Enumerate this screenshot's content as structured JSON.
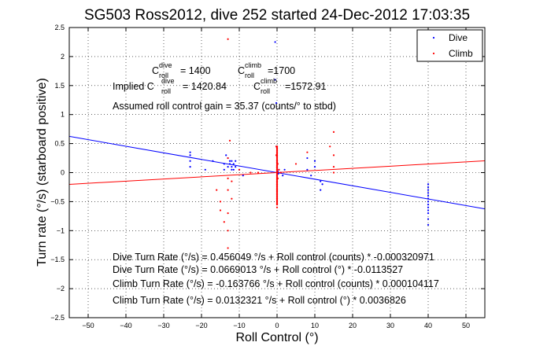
{
  "chart_data": {
    "type": "scatter",
    "title": "SG503 Ross2012, dive 252 started 24-Dec-2012 17:03:35",
    "xlabel": "Roll Control (°)",
    "ylabel": "Turn rate (°/s) (starboard positive)",
    "xlim": [
      -55,
      55
    ],
    "ylim": [
      -2.5,
      2.5
    ],
    "xticks": [
      -50,
      -40,
      -30,
      -20,
      -10,
      0,
      10,
      20,
      30,
      40,
      50
    ],
    "yticks": [
      -2.5,
      -2,
      -1.5,
      -1,
      -0.5,
      0,
      0.5,
      1,
      1.5,
      2,
      2.5
    ],
    "grid": true,
    "legend": {
      "placement": "top-right",
      "entries": [
        "Dive",
        "Climb"
      ]
    },
    "colors": {
      "dive": "#0000ff",
      "climb": "#ff0000",
      "axes": "#000000"
    },
    "series": [
      {
        "name": "Dive",
        "x": [
          -23,
          -23,
          -23,
          -23,
          -19,
          -17,
          -14,
          -14,
          -13.5,
          -13,
          -13,
          -12.5,
          -12.5,
          -12,
          -12,
          -12,
          -11.5,
          -11.5,
          -11,
          -11,
          -10,
          -9,
          -0.5,
          -0.5,
          -0.2,
          -0.2,
          0,
          0,
          0,
          0,
          0,
          0.2,
          0.3,
          0.5,
          1,
          1.5,
          2,
          8,
          8,
          9,
          10,
          10,
          11.5,
          11.5,
          12,
          40,
          40,
          40,
          40,
          40,
          40,
          40,
          40,
          40,
          40,
          40,
          40,
          40
        ],
        "y": [
          0.35,
          0.3,
          0.2,
          0.1,
          0.05,
          0.2,
          0.15,
          0.05,
          0.3,
          0.1,
          0.25,
          0.2,
          0.15,
          0.2,
          0.05,
          0.1,
          0.15,
          0.05,
          0.1,
          0.2,
          0.05,
          -0.05,
          2.25,
          1.6,
          1.2,
          0.45,
          0.3,
          0.2,
          0.1,
          0.05,
          -0.05,
          0.02,
          -0.02,
          0.05,
          0.0,
          -0.05,
          0.05,
          0.25,
          0.05,
          -0.05,
          0.2,
          0.1,
          -0.15,
          -0.3,
          -0.2,
          -0.2,
          -0.3,
          -0.35,
          -0.4,
          -0.45,
          -0.5,
          -0.55,
          -0.6,
          -0.65,
          -0.7,
          -0.8,
          -0.9,
          -0.25
        ]
      },
      {
        "name": "Climb",
        "x": [
          -16,
          -15,
          -15,
          -14,
          -13,
          -13,
          -13,
          -13,
          -13,
          -13,
          -12,
          -12,
          -10,
          -7,
          -5,
          -0.2,
          -0.2,
          0,
          0,
          0,
          0,
          0,
          0,
          0,
          0,
          0.2,
          0.2,
          0.5,
          1,
          5,
          8,
          14,
          15,
          15,
          15,
          15,
          -12.5,
          -13
        ],
        "y": [
          -0.3,
          -0.5,
          -0.65,
          -0.85,
          2.3,
          0.25,
          -0.1,
          -0.3,
          -1.0,
          -1.3,
          -0.15,
          -0.45,
          0.05,
          0.0,
          0.0,
          0.45,
          0.3,
          0.2,
          0.1,
          0.0,
          -0.1,
          -0.2,
          -0.3,
          -0.5,
          -0.6,
          0.15,
          -0.1,
          0.05,
          0.0,
          0.15,
          0.35,
          0.45,
          0.3,
          0.7,
          0.1,
          0.0,
          0.55,
          -0.7
        ]
      }
    ],
    "fit_lines": [
      {
        "name": "Dive fit",
        "x": [
          -55,
          55
        ],
        "y": [
          0.6248,
          -0.6248
        ]
      },
      {
        "name": "Climb fit",
        "x": [
          -55,
          55
        ],
        "y": [
          -0.2025,
          0.2025
        ]
      }
    ],
    "annotations": {
      "c_dive_main": "C",
      "c_dive_sup": "dive",
      "c_dive_sub": "roll",
      "c_dive_val": "= 1400",
      "c_climb_main": "C",
      "c_climb_sup": "climb",
      "c_climb_sub": "roll",
      "c_climb_val": "=1700",
      "implied_prefix": "Implied C",
      "implied_dive_sup": "dive",
      "implied_dive_sub": "roll",
      "implied_dive_val": "= 1420.84",
      "implied_climb_main": "C",
      "implied_climb_sup": "climb",
      "implied_climb_sub": "roll",
      "implied_climb_val": "=1572.91",
      "gain": "Assumed roll control gain = 35.37 (counts/° to stbd)",
      "eq1": "Dive Turn Rate (°/s) = 0.456049 °/s + Roll control (counts) * -0.000320971",
      "eq2": "Dive Turn Rate (°/s) = 0.0669013 °/s + Roll control (°) * -0.0113527",
      "eq3": "Climb Turn Rate (°/s) = -0.163766 °/s + Roll control (counts) * 0.000104117",
      "eq4": "Climb Turn Rate (°/s) = 0.0132321 °/s + Roll control (°) * 0.0036826"
    }
  }
}
